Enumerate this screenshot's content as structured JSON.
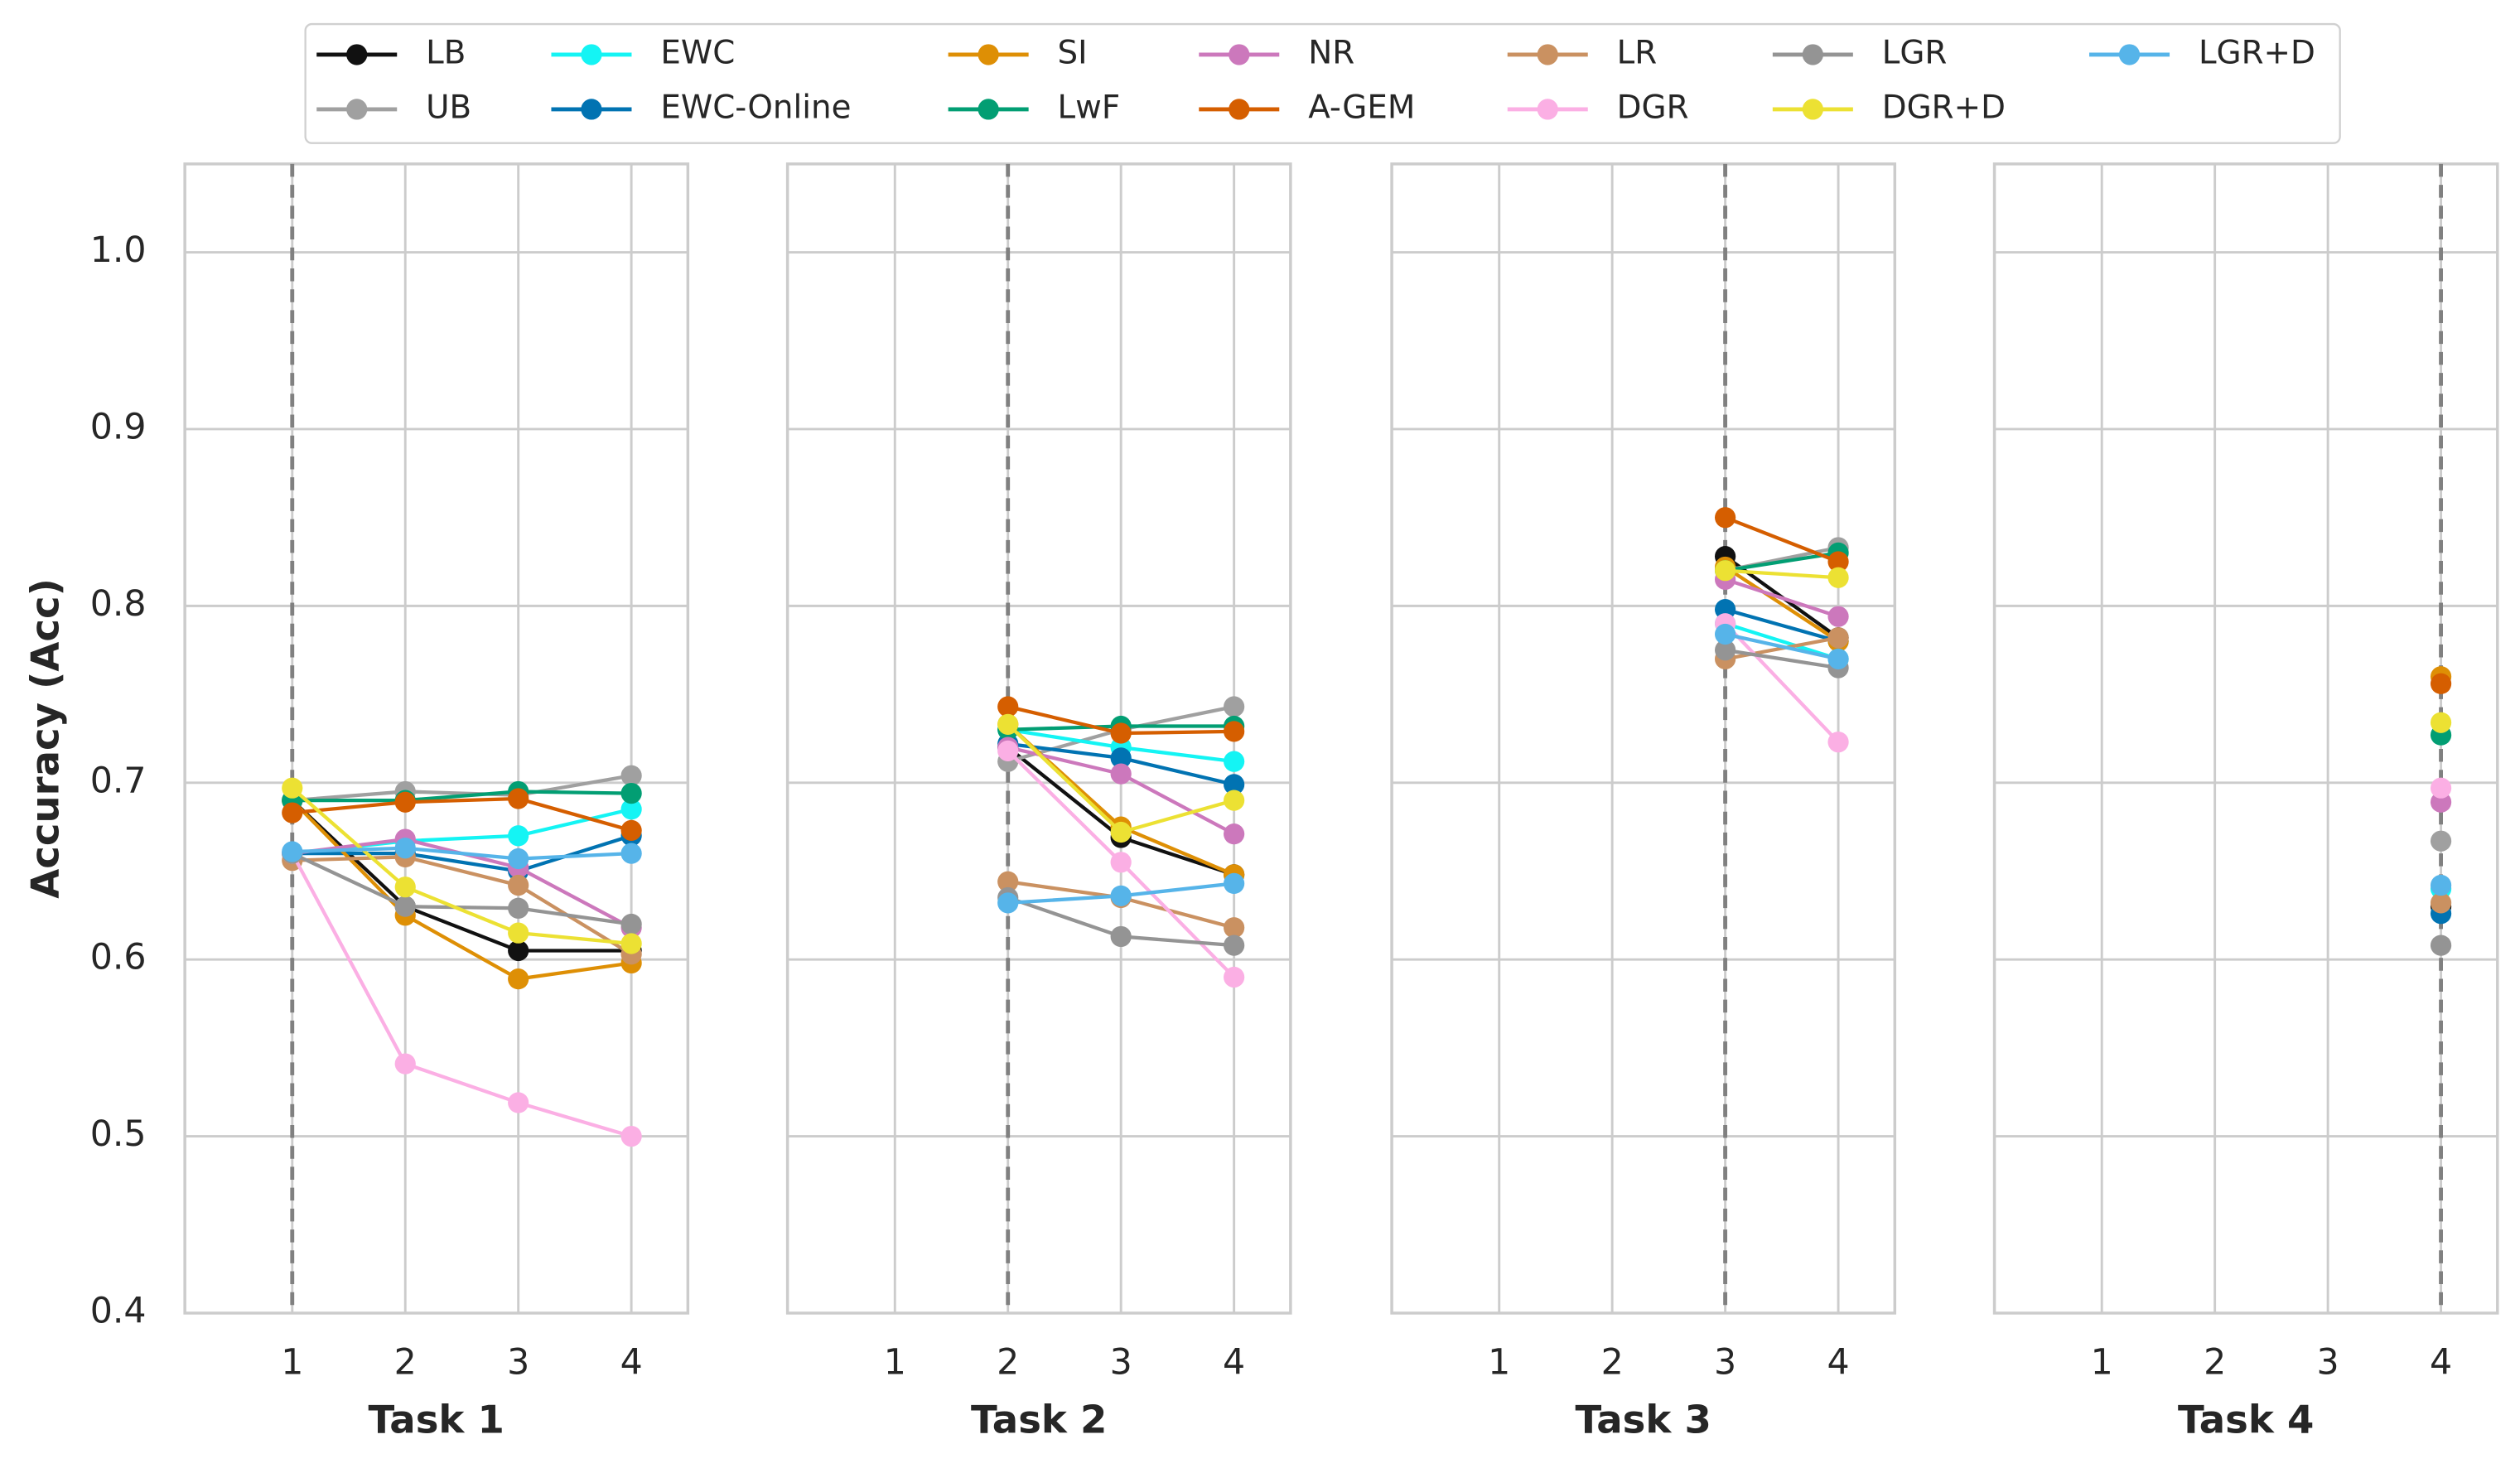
{
  "chart_data": [
    {
      "type": "line",
      "xlabel": "Task 1",
      "ylabel": "Accuracy (Acc)",
      "vline": 1,
      "x": [
        1,
        2,
        3,
        4
      ],
      "xlim": [
        0.05,
        4.5
      ],
      "xticks": [
        1,
        2,
        3,
        4
      ],
      "ylim": [
        0.4,
        1.05
      ],
      "yticks": [
        0.4,
        0.5,
        0.6,
        0.7,
        0.8,
        0.9,
        {
          "value": 1,
          "label": "1.0"
        }
      ],
      "grid": true,
      "series": [
        {
          "name": "LB",
          "color": "#111111",
          "values": [
            0.69,
            0.63,
            0.605,
            0.605
          ]
        },
        {
          "name": "UB",
          "color": "#a0a0a0",
          "values": [
            0.69,
            0.695,
            0.693,
            0.704
          ]
        },
        {
          "name": "EWC",
          "color": "#14f4f4",
          "values": [
            0.66,
            0.667,
            0.67,
            0.685
          ]
        },
        {
          "name": "EWC-Online",
          "color": "#0173b2",
          "values": [
            0.66,
            0.66,
            0.65,
            0.67
          ]
        },
        {
          "name": "SI",
          "color": "#de8f05",
          "values": [
            0.69,
            0.625,
            0.589,
            0.598
          ]
        },
        {
          "name": "LwF",
          "color": "#029e73",
          "values": [
            0.69,
            0.69,
            0.695,
            0.694
          ]
        },
        {
          "name": "NR",
          "color": "#cc78bc",
          "values": [
            0.66,
            0.668,
            0.652,
            0.618
          ]
        },
        {
          "name": "A-GEM",
          "color": "#d55e00",
          "values": [
            0.683,
            0.689,
            0.691,
            0.673
          ]
        },
        {
          "name": "LR",
          "color": "#ca9161",
          "values": [
            0.656,
            0.658,
            0.642,
            0.603
          ]
        },
        {
          "name": "DGR",
          "color": "#fbafe4",
          "values": [
            0.66,
            0.541,
            0.519,
            0.5
          ]
        },
        {
          "name": "LGR",
          "color": "#949494",
          "values": [
            0.66,
            0.63,
            0.629,
            0.62
          ]
        },
        {
          "name": "DGR+D",
          "color": "#ece133",
          "values": [
            0.697,
            0.641,
            0.615,
            0.609
          ]
        },
        {
          "name": "LGR+D",
          "color": "#56b4e9",
          "values": [
            0.661,
            0.663,
            0.657,
            0.66
          ]
        }
      ]
    },
    {
      "type": "line",
      "xlabel": "Task 2",
      "vline": 2,
      "x": [
        1,
        2,
        3,
        4
      ],
      "xlim": [
        0.05,
        4.5
      ],
      "xticks": [
        1,
        2,
        3,
        4
      ],
      "ylim": [
        0.4,
        1.05
      ],
      "yticks": [
        0.4,
        0.5,
        0.6,
        0.7,
        0.8,
        0.9,
        1
      ],
      "grid": true,
      "series": [
        {
          "name": "LB",
          "color": "#111111",
          "values": [
            null,
            0.72,
            0.669,
            0.648
          ]
        },
        {
          "name": "UB",
          "color": "#a0a0a0",
          "values": [
            null,
            0.712,
            0.73,
            0.743
          ]
        },
        {
          "name": "EWC",
          "color": "#14f4f4",
          "values": [
            null,
            0.73,
            0.72,
            0.712
          ]
        },
        {
          "name": "EWC-Online",
          "color": "#0173b2",
          "values": [
            null,
            0.722,
            0.714,
            0.699
          ]
        },
        {
          "name": "SI",
          "color": "#de8f05",
          "values": [
            null,
            0.733,
            0.675,
            0.648
          ]
        },
        {
          "name": "LwF",
          "color": "#029e73",
          "values": [
            null,
            0.73,
            0.732,
            0.732
          ]
        },
        {
          "name": "NR",
          "color": "#cc78bc",
          "values": [
            null,
            0.72,
            0.705,
            0.671
          ]
        },
        {
          "name": "A-GEM",
          "color": "#d55e00",
          "values": [
            null,
            0.743,
            0.728,
            0.729
          ]
        },
        {
          "name": "LR",
          "color": "#ca9161",
          "values": [
            null,
            0.644,
            0.635,
            0.618
          ]
        },
        {
          "name": "DGR",
          "color": "#fbafe4",
          "values": [
            null,
            0.718,
            0.655,
            0.59
          ]
        },
        {
          "name": "LGR",
          "color": "#949494",
          "values": [
            null,
            0.635,
            0.613,
            0.608
          ]
        },
        {
          "name": "DGR+D",
          "color": "#ece133",
          "values": [
            null,
            0.733,
            0.672,
            0.69
          ]
        },
        {
          "name": "LGR+D",
          "color": "#56b4e9",
          "values": [
            null,
            0.632,
            0.636,
            0.643
          ]
        }
      ]
    },
    {
      "type": "line",
      "xlabel": "Task 3",
      "vline": 3,
      "x": [
        1,
        2,
        3,
        4
      ],
      "xlim": [
        0.05,
        4.5
      ],
      "xticks": [
        1,
        2,
        3,
        4
      ],
      "ylim": [
        0.4,
        1.05
      ],
      "yticks": [
        0.4,
        0.5,
        0.6,
        0.7,
        0.8,
        0.9,
        1
      ],
      "grid": true,
      "series": [
        {
          "name": "LB",
          "color": "#111111",
          "values": [
            null,
            null,
            0.828,
            0.782
          ]
        },
        {
          "name": "UB",
          "color": "#a0a0a0",
          "values": [
            null,
            null,
            0.82,
            0.833
          ]
        },
        {
          "name": "EWC",
          "color": "#14f4f4",
          "values": [
            null,
            null,
            0.79,
            0.77
          ]
        },
        {
          "name": "EWC-Online",
          "color": "#0173b2",
          "values": [
            null,
            null,
            0.798,
            0.78
          ]
        },
        {
          "name": "SI",
          "color": "#de8f05",
          "values": [
            null,
            null,
            0.822,
            0.78
          ]
        },
        {
          "name": "LwF",
          "color": "#029e73",
          "values": [
            null,
            null,
            0.82,
            0.83
          ]
        },
        {
          "name": "NR",
          "color": "#cc78bc",
          "values": [
            null,
            null,
            0.815,
            0.794
          ]
        },
        {
          "name": "A-GEM",
          "color": "#d55e00",
          "values": [
            null,
            null,
            0.85,
            0.825
          ]
        },
        {
          "name": "LR",
          "color": "#ca9161",
          "values": [
            null,
            null,
            0.77,
            0.782
          ]
        },
        {
          "name": "DGR",
          "color": "#fbafe4",
          "values": [
            null,
            null,
            0.79,
            0.723
          ]
        },
        {
          "name": "LGR",
          "color": "#949494",
          "values": [
            null,
            null,
            0.775,
            0.765
          ]
        },
        {
          "name": "DGR+D",
          "color": "#ece133",
          "values": [
            null,
            null,
            0.82,
            0.816
          ]
        },
        {
          "name": "LGR+D",
          "color": "#56b4e9",
          "values": [
            null,
            null,
            0.784,
            0.77
          ]
        }
      ]
    },
    {
      "type": "line",
      "xlabel": "Task 4",
      "vline": 4,
      "x": [
        1,
        2,
        3,
        4
      ],
      "xlim": [
        0.05,
        4.5
      ],
      "xticks": [
        1,
        2,
        3,
        4
      ],
      "ylim": [
        0.4,
        1.05
      ],
      "yticks": [
        0.4,
        0.5,
        0.6,
        0.7,
        0.8,
        0.9,
        1
      ],
      "grid": true,
      "series": [
        {
          "name": "LB",
          "color": "#111111",
          "values": [
            null,
            null,
            null,
            0.63
          ]
        },
        {
          "name": "UB",
          "color": "#a0a0a0",
          "values": [
            null,
            null,
            null,
            0.667
          ]
        },
        {
          "name": "EWC",
          "color": "#14f4f4",
          "values": [
            null,
            null,
            null,
            0.64
          ]
        },
        {
          "name": "EWC-Online",
          "color": "#0173b2",
          "values": [
            null,
            null,
            null,
            0.626
          ]
        },
        {
          "name": "SI",
          "color": "#de8f05",
          "values": [
            null,
            null,
            null,
            0.76
          ]
        },
        {
          "name": "LwF",
          "color": "#029e73",
          "values": [
            null,
            null,
            null,
            0.727
          ]
        },
        {
          "name": "NR",
          "color": "#cc78bc",
          "values": [
            null,
            null,
            null,
            0.689
          ]
        },
        {
          "name": "A-GEM",
          "color": "#d55e00",
          "values": [
            null,
            null,
            null,
            0.756
          ]
        },
        {
          "name": "LR",
          "color": "#ca9161",
          "values": [
            null,
            null,
            null,
            0.632
          ]
        },
        {
          "name": "DGR",
          "color": "#fbafe4",
          "values": [
            null,
            null,
            null,
            0.697
          ]
        },
        {
          "name": "LGR",
          "color": "#949494",
          "values": [
            null,
            null,
            null,
            0.608
          ]
        },
        {
          "name": "DGR+D",
          "color": "#ece133",
          "values": [
            null,
            null,
            null,
            0.734
          ]
        },
        {
          "name": "LGR+D",
          "color": "#56b4e9",
          "values": [
            null,
            null,
            null,
            0.642
          ]
        }
      ]
    }
  ]
}
